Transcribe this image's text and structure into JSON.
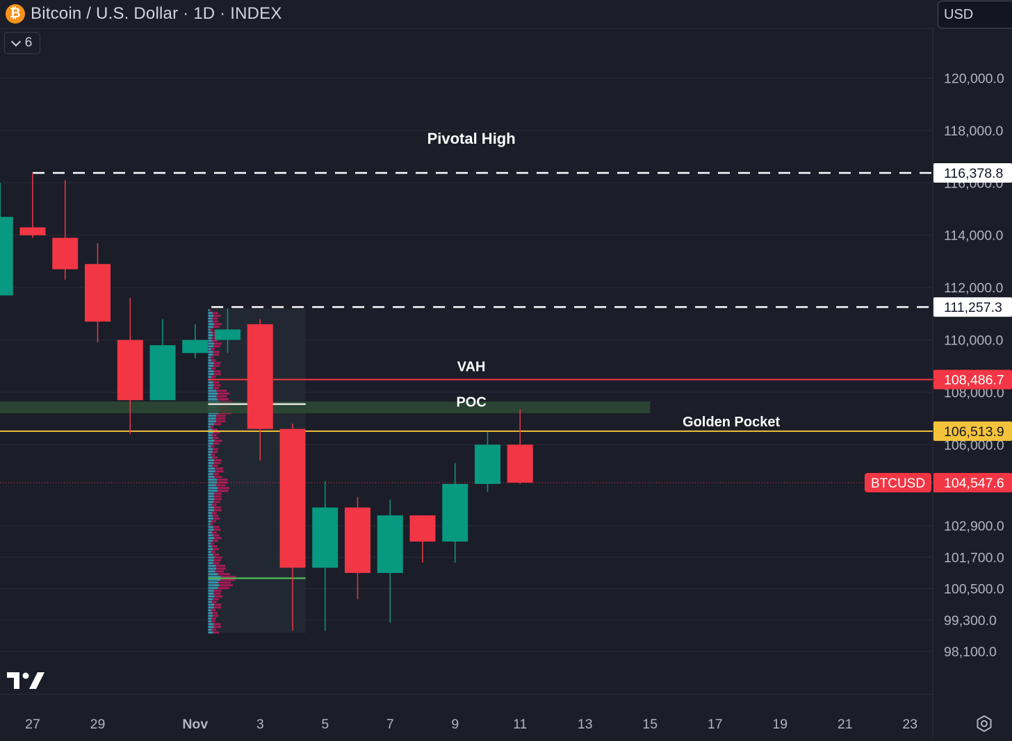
{
  "header": {
    "icon_glyph": "₿",
    "title": "Bitcoin / U.S. Dollar · 1D · INDEX",
    "indicator_count": "6",
    "currency": "USD"
  },
  "colors": {
    "background": "#1b1d28",
    "grid": "#2a2e39",
    "up": "#089981",
    "down": "#f23645",
    "golden_pocket": "#f5c33b",
    "vah": "#f23645",
    "poc_band": "#2d4a35",
    "va_box": "#242a33"
  },
  "chart_data": {
    "type": "candlestick",
    "symbol": "BTCUSD",
    "x_ticks": [
      {
        "day": 0,
        "label": "27"
      },
      {
        "day": 2,
        "label": "29"
      },
      {
        "day": 5,
        "label": "Nov",
        "bold": true
      },
      {
        "day": 7,
        "label": "3"
      },
      {
        "day": 9,
        "label": "5"
      },
      {
        "day": 11,
        "label": "7"
      },
      {
        "day": 13,
        "label": "9"
      },
      {
        "day": 15,
        "label": "11"
      },
      {
        "day": 17,
        "label": "13"
      },
      {
        "day": 19,
        "label": "15"
      },
      {
        "day": 21,
        "label": "17"
      },
      {
        "day": 23,
        "label": "19"
      },
      {
        "day": 25,
        "label": "21"
      },
      {
        "day": 27,
        "label": "23"
      }
    ],
    "y_ticks": [
      {
        "value": 120000,
        "label": "120,000.0"
      },
      {
        "value": 118000,
        "label": "118,000.0"
      },
      {
        "value": 116000,
        "label": "116,000.0"
      },
      {
        "value": 114000,
        "label": "114,000.0"
      },
      {
        "value": 112000,
        "label": "112,000.0"
      },
      {
        "value": 110000,
        "label": "110,000.0"
      },
      {
        "value": 108000,
        "label": "108,000.0"
      },
      {
        "value": 106000,
        "label": "106,000.0"
      },
      {
        "value": 102900,
        "label": "102,900.0"
      },
      {
        "value": 101700,
        "label": "101,700.0"
      },
      {
        "value": 100500,
        "label": "100,500.0"
      },
      {
        "value": 99300,
        "label": "99,300.0"
      },
      {
        "value": 98100,
        "label": "98,100.0"
      }
    ],
    "candles": [
      {
        "day": -1,
        "open": 111700,
        "high": 116000,
        "low": 111700,
        "close": 114700
      },
      {
        "day": 0,
        "open": 114300,
        "high": 116380,
        "low": 113900,
        "close": 114000
      },
      {
        "day": 1,
        "open": 113900,
        "high": 116100,
        "low": 112300,
        "close": 112700
      },
      {
        "day": 2,
        "open": 112900,
        "high": 113700,
        "low": 109900,
        "close": 110700
      },
      {
        "day": 3,
        "open": 110000,
        "high": 111600,
        "low": 106400,
        "close": 107700
      },
      {
        "day": 4,
        "open": 107700,
        "high": 110800,
        "low": 107700,
        "close": 109800
      },
      {
        "day": 5,
        "open": 109500,
        "high": 110600,
        "low": 109300,
        "close": 110000
      },
      {
        "day": 6,
        "open": 110000,
        "high": 111200,
        "low": 109500,
        "close": 110400
      },
      {
        "day": 7,
        "open": 110600,
        "high": 110800,
        "low": 105400,
        "close": 106600
      },
      {
        "day": 8,
        "open": 106600,
        "high": 106800,
        "low": 98900,
        "close": 101300
      },
      {
        "day": 9,
        "open": 101300,
        "high": 104600,
        "low": 98900,
        "close": 103600
      },
      {
        "day": 10,
        "open": 103600,
        "high": 104000,
        "low": 100100,
        "close": 101100
      },
      {
        "day": 11,
        "open": 101100,
        "high": 103900,
        "low": 99200,
        "close": 103300
      },
      {
        "day": 12,
        "open": 103300,
        "high": 103300,
        "low": 101500,
        "close": 102300
      },
      {
        "day": 13,
        "open": 102300,
        "high": 105300,
        "low": 101500,
        "close": 104500
      },
      {
        "day": 14,
        "open": 104500,
        "high": 106500,
        "low": 104200,
        "close": 106000
      },
      {
        "day": 15,
        "open": 106000,
        "high": 107350,
        "low": 104500,
        "close": 104548
      }
    ],
    "levels": [
      {
        "name": "Pivotal High",
        "value": 116378.8,
        "axis_label": "116,378.8",
        "style": "dashed",
        "color": "#ffffff",
        "start_day": 0
      },
      {
        "name": "",
        "value": 111257.3,
        "axis_label": "111,257.3",
        "style": "dashed",
        "color": "#ffffff",
        "start_day": 5.5
      },
      {
        "name": "VAH",
        "value": 108486.7,
        "axis_label": "108,486.7",
        "style": "solid",
        "color": "#f23645",
        "start_day": 5.4
      },
      {
        "name": "Golden Pocket",
        "value": 106513.9,
        "axis_label": "106,513.9",
        "style": "solid",
        "color": "#f5c33b",
        "start_day": -1.5
      }
    ],
    "annotations": [
      {
        "text": "Pivotal High",
        "day": 13.5,
        "value": 117500
      },
      {
        "text": "VAH",
        "day": 13.5,
        "value": 108800
      },
      {
        "text": "POC",
        "day": 13.5,
        "value": 107450
      },
      {
        "text": "Golden Pocket",
        "day": 21.5,
        "value": 106700
      }
    ],
    "poc": {
      "value": 107550,
      "band_low": 107200,
      "band_high": 107650,
      "end_day": 19
    },
    "value_area": {
      "start_day": 5.4,
      "end_day": 8.4,
      "top": 111200,
      "bottom": 98800,
      "poc_line": 107550,
      "val_line": 100900
    },
    "last_price": {
      "label": "BTCUSD",
      "value": 104547.6,
      "axis_label": "104,547.6"
    }
  }
}
